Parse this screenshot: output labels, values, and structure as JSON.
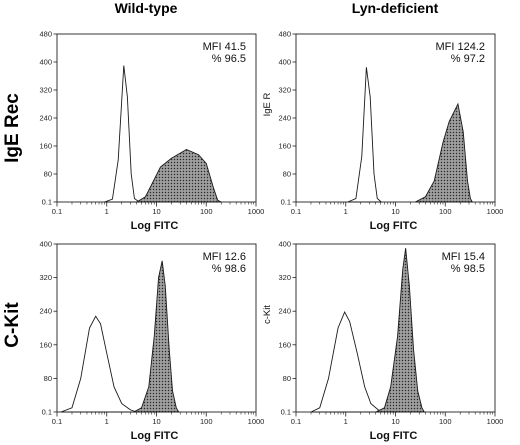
{
  "figure": {
    "column_titles": [
      "Wild-type",
      "Lyn-deficient"
    ],
    "row_titles": [
      "IgE Rec",
      "C-Kit"
    ]
  },
  "chart_data": [
    {
      "type": "area",
      "xlabel": "Log FITC",
      "ylabel": "",
      "xscale": "log",
      "xlim": [
        0.1,
        1000
      ],
      "ylim": [
        0.1,
        480
      ],
      "x_ticks": [
        "0.1",
        "1",
        "10",
        "100",
        "1000"
      ],
      "y_ticks": [
        "0.1",
        "80",
        "160",
        "240",
        "320",
        "400",
        "480"
      ],
      "annotations": [
        "MFI 41.5",
        "% 96.5"
      ],
      "series": [
        {
          "style": "outline",
          "peak_x": 2.2,
          "peak_y": 390,
          "points": [
            [
              0.9,
              0
            ],
            [
              1.3,
              8
            ],
            [
              1.7,
              120
            ],
            [
              2.2,
              390
            ],
            [
              2.6,
              300
            ],
            [
              3.1,
              80
            ],
            [
              3.6,
              10
            ],
            [
              4.5,
              0
            ]
          ]
        },
        {
          "style": "shaded",
          "peak_x": 40,
          "peak_y": 150,
          "points": [
            [
              4,
              0
            ],
            [
              6,
              15
            ],
            [
              8,
              50
            ],
            [
              12,
              100
            ],
            [
              20,
              125
            ],
            [
              40,
              150
            ],
            [
              70,
              135
            ],
            [
              100,
              110
            ],
            [
              140,
              40
            ],
            [
              170,
              5
            ],
            [
              200,
              0
            ]
          ]
        }
      ]
    },
    {
      "type": "area",
      "xlabel": "Log FITC",
      "ylabel": "IgE R",
      "xscale": "log",
      "xlim": [
        0.1,
        1000
      ],
      "ylim": [
        0.1,
        480
      ],
      "x_ticks": [
        "0.1",
        "1",
        "10",
        "100",
        "1000"
      ],
      "y_ticks": [
        "0.1",
        "80",
        "160",
        "240",
        "320",
        "400",
        "480"
      ],
      "annotations": [
        "MFI 124.2",
        "% 97.2"
      ],
      "series": [
        {
          "style": "outline",
          "peak_x": 2.6,
          "peak_y": 385,
          "points": [
            [
              1.1,
              0
            ],
            [
              1.6,
              10
            ],
            [
              2.1,
              130
            ],
            [
              2.6,
              385
            ],
            [
              3.1,
              300
            ],
            [
              3.7,
              80
            ],
            [
              4.3,
              10
            ],
            [
              5.2,
              0
            ]
          ]
        },
        {
          "style": "shaded",
          "peak_x": 180,
          "peak_y": 280,
          "points": [
            [
              25,
              0
            ],
            [
              40,
              15
            ],
            [
              60,
              60
            ],
            [
              90,
              170
            ],
            [
              120,
              230
            ],
            [
              180,
              280
            ],
            [
              230,
              200
            ],
            [
              280,
              60
            ],
            [
              320,
              10
            ],
            [
              350,
              0
            ]
          ]
        }
      ]
    },
    {
      "type": "area",
      "xlabel": "Log FITC",
      "ylabel": "",
      "xscale": "log",
      "xlim": [
        0.1,
        1000
      ],
      "ylim": [
        0.1,
        400
      ],
      "x_ticks": [
        "0.1",
        "1",
        "10",
        "100",
        "1000"
      ],
      "y_ticks": [
        "0.1",
        "80",
        "160",
        "240",
        "320",
        "400"
      ],
      "annotations": [
        "MFI 12.6",
        "% 98.6"
      ],
      "series": [
        {
          "style": "outline",
          "peak_x": 0.6,
          "peak_y": 228,
          "points": [
            [
              0.12,
              0
            ],
            [
              0.2,
              10
            ],
            [
              0.3,
              80
            ],
            [
              0.45,
              200
            ],
            [
              0.6,
              228
            ],
            [
              0.75,
              210
            ],
            [
              1.0,
              140
            ],
            [
              1.4,
              60
            ],
            [
              2.0,
              20
            ],
            [
              3.0,
              5
            ],
            [
              4.0,
              0
            ]
          ]
        },
        {
          "style": "shaded",
          "peak_x": 13,
          "peak_y": 360,
          "points": [
            [
              3.5,
              0
            ],
            [
              5,
              10
            ],
            [
              7,
              60
            ],
            [
              9,
              180
            ],
            [
              11,
              320
            ],
            [
              13,
              360
            ],
            [
              15,
              300
            ],
            [
              18,
              150
            ],
            [
              21,
              50
            ],
            [
              25,
              10
            ],
            [
              28,
              0
            ]
          ]
        }
      ]
    },
    {
      "type": "area",
      "xlabel": "Log FITC",
      "ylabel": "c-Kit",
      "xscale": "log",
      "xlim": [
        0.1,
        1000
      ],
      "ylim": [
        0.1,
        400
      ],
      "x_ticks": [
        "0.1",
        "1",
        "10",
        "100",
        "1000"
      ],
      "y_ticks": [
        "0.1",
        "80",
        "160",
        "240",
        "320",
        "400"
      ],
      "annotations": [
        "MFI 15.4",
        "% 98.5"
      ],
      "series": [
        {
          "style": "outline",
          "peak_x": 0.95,
          "peak_y": 238,
          "points": [
            [
              0.2,
              0
            ],
            [
              0.3,
              10
            ],
            [
              0.45,
              80
            ],
            [
              0.7,
              200
            ],
            [
              0.95,
              238
            ],
            [
              1.2,
              215
            ],
            [
              1.7,
              140
            ],
            [
              2.4,
              60
            ],
            [
              3.2,
              20
            ],
            [
              4.5,
              5
            ],
            [
              5.5,
              0
            ]
          ]
        },
        {
          "style": "shaded",
          "peak_x": 16,
          "peak_y": 390,
          "points": [
            [
              4,
              0
            ],
            [
              6,
              10
            ],
            [
              8,
              60
            ],
            [
              11,
              180
            ],
            [
              14,
              340
            ],
            [
              16,
              390
            ],
            [
              19,
              300
            ],
            [
              23,
              150
            ],
            [
              28,
              50
            ],
            [
              34,
              10
            ],
            [
              38,
              0
            ]
          ]
        }
      ]
    }
  ]
}
